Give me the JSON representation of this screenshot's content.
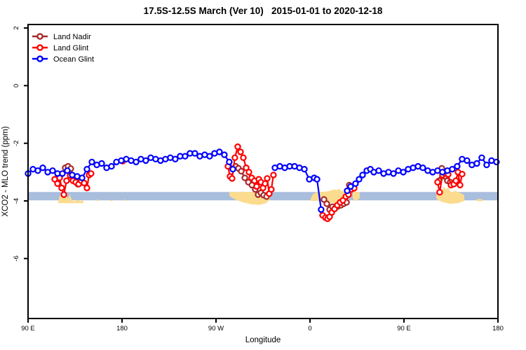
{
  "chart_data": {
    "type": "line",
    "title": "17.5S-12.5S March (Ver 10)   2015-01-01 to 2020-12-18",
    "xlabel": "Longitude",
    "ylabel": "XCO2 - MLO trend (ppm)",
    "x_axis": {
      "note": "longitude wraps eastward from 90E; positions are degrees east of 90E over a 450-degree span",
      "span_deg": 450,
      "ticks": [
        {
          "pos": 0,
          "label": "90 E"
        },
        {
          "pos": 90,
          "label": "180"
        },
        {
          "pos": 180,
          "label": "90 W"
        },
        {
          "pos": 270,
          "label": "0"
        },
        {
          "pos": 360,
          "label": "90 E"
        },
        {
          "pos": 450,
          "label": "180"
        }
      ]
    },
    "y_axis": {
      "ticks": [
        2,
        0,
        -2,
        -4,
        -6
      ],
      "ylim": [
        -8.1,
        2.15
      ],
      "grid": false
    },
    "legend": {
      "position": "top-left",
      "entries": [
        {
          "label": "Land Nadir",
          "color": "#a52a2a"
        },
        {
          "label": "Land Glint",
          "color": "#ff0000"
        },
        {
          "label": "Ocean Glint",
          "color": "#0000ff"
        }
      ]
    },
    "band": {
      "color": "#a9bedd",
      "y_top": -3.69,
      "y_bottom": -3.98
    },
    "land_patches": {
      "color": "#fbdc8e",
      "polygons": [
        [
          [
            28.9,
            -4.05
          ],
          [
            30,
            -3.85
          ],
          [
            32.5,
            -3.72
          ],
          [
            34.5,
            -3.85
          ],
          [
            36,
            -3.74
          ],
          [
            38,
            -3.92
          ],
          [
            40,
            -3.78
          ],
          [
            42,
            -3.98
          ],
          [
            44,
            -4.02
          ],
          [
            47,
            -3.96
          ],
          [
            50,
            -4.0
          ],
          [
            53,
            -3.98
          ],
          [
            53,
            -4.08
          ],
          [
            29,
            -4.08
          ]
        ],
        [
          [
            66,
            -3.96
          ],
          [
            68.5,
            -3.96
          ],
          [
            68.5,
            -4.0
          ],
          [
            66,
            -4.0
          ]
        ],
        [
          [
            79,
            -3.97
          ],
          [
            81,
            -3.97
          ],
          [
            81,
            -4.01
          ],
          [
            79,
            -4.01
          ]
        ],
        [
          [
            92,
            -3.96
          ],
          [
            94,
            -3.96
          ],
          [
            94,
            -4.0
          ],
          [
            92,
            -4.0
          ]
        ],
        [
          [
            192.7,
            -3.69
          ],
          [
            231.7,
            -3.69
          ],
          [
            231.7,
            -3.95
          ],
          [
            228,
            -4.08
          ],
          [
            222,
            -4.14
          ],
          [
            214,
            -4.12
          ],
          [
            206,
            -4.05
          ],
          [
            199,
            -3.96
          ],
          [
            194,
            -3.86
          ],
          [
            192.7,
            -3.8
          ]
        ],
        [
          [
            270.6,
            -3.92
          ],
          [
            273,
            -3.76
          ],
          [
            276,
            -3.7
          ],
          [
            282,
            -3.69
          ],
          [
            288,
            -3.66
          ],
          [
            293,
            -3.6
          ],
          [
            296,
            -3.62
          ],
          [
            298,
            -3.58
          ],
          [
            300,
            -3.65
          ],
          [
            303,
            -3.69
          ],
          [
            305.5,
            -3.74
          ],
          [
            307,
            -3.85
          ],
          [
            307,
            -3.98
          ],
          [
            303,
            -4.05
          ],
          [
            297,
            -4.1
          ],
          [
            290,
            -4.06
          ],
          [
            283,
            -4.02
          ],
          [
            276,
            -4.0
          ],
          [
            270.6,
            -4.0
          ]
        ],
        [
          [
            311,
            -3.69
          ],
          [
            317.6,
            -3.69
          ],
          [
            317.6,
            -3.9
          ],
          [
            315,
            -3.98
          ],
          [
            312.5,
            -4.0
          ],
          [
            311,
            -3.88
          ]
        ],
        [
          [
            390.8,
            -3.82
          ],
          [
            393,
            -3.7
          ],
          [
            396,
            -3.62
          ],
          [
            398.5,
            -3.52
          ],
          [
            400.5,
            -3.6
          ],
          [
            402.5,
            -3.52
          ],
          [
            404,
            -3.66
          ],
          [
            406.5,
            -3.69
          ],
          [
            409,
            -3.65
          ],
          [
            411.5,
            -3.69
          ],
          [
            414,
            -3.72
          ],
          [
            417.7,
            -3.8
          ],
          [
            417.7,
            -4.0
          ],
          [
            412,
            -4.08
          ],
          [
            404,
            -4.1
          ],
          [
            397,
            -4.04
          ],
          [
            392,
            -3.96
          ],
          [
            390.8,
            -3.88
          ]
        ],
        [
          [
            429.8,
            -3.94
          ],
          [
            435.2,
            -3.94
          ],
          [
            435.2,
            -4.01
          ],
          [
            429.8,
            -4.01
          ]
        ]
      ]
    },
    "series": [
      {
        "name": "Land Nadir",
        "color": "#a52a2a",
        "marker": "open-circle",
        "segments": [
          [
            [
              35.6,
              -2.85
            ],
            [
              38.3,
              -2.8
            ],
            [
              41,
              -2.88
            ],
            [
              43.7,
              -3.25
            ],
            [
              45.7,
              -3.32
            ],
            [
              47.7,
              -3.42
            ]
          ],
          [
            [
              198.8,
              -2.8
            ],
            [
              201.5,
              -2.87
            ],
            [
              204.2,
              -2.97
            ],
            [
              207.6,
              -3.2
            ],
            [
              211,
              -3.35
            ],
            [
              214.4,
              -3.45
            ],
            [
              217.6,
              -3.6
            ],
            [
              220.3,
              -3.78
            ],
            [
              223,
              -3.72
            ],
            [
              225.7,
              -3.8
            ],
            [
              228.4,
              -3.85
            ]
          ],
          [
            [
              283.4,
              -3.95
            ],
            [
              286.1,
              -4.1
            ],
            [
              288.8,
              -4.3
            ],
            [
              291.5,
              -4.2
            ],
            [
              294.2,
              -4.25
            ],
            [
              296.9,
              -4.18
            ],
            [
              299.6,
              -4.15
            ],
            [
              302.3,
              -4.1
            ],
            [
              305,
              -4.05
            ],
            [
              307.6,
              -3.45
            ],
            [
              310.3,
              -3.55
            ]
          ],
          [
            [
              393.6,
              -3.3
            ],
            [
              396.3,
              -2.87
            ],
            [
              399,
              -3.15
            ],
            [
              401.6,
              -3.3
            ],
            [
              404.3,
              -3.35
            ],
            [
              407,
              -3.42
            ]
          ]
        ]
      },
      {
        "name": "Land Glint",
        "color": "#ff0000",
        "marker": "open-circle",
        "segments": [
          [
            [
              25.5,
              -3.25
            ],
            [
              28.2,
              -3.4
            ],
            [
              30.2,
              -3.2
            ],
            [
              32.2,
              -3.55
            ],
            [
              34.3,
              -3.78
            ],
            [
              36.9,
              -3.3
            ],
            [
              40.3,
              -3.12
            ],
            [
              43,
              -3.3
            ],
            [
              45.7,
              -3.35
            ],
            [
              48.4,
              -3.42
            ],
            [
              51,
              -3.3
            ],
            [
              53.7,
              -3.38
            ],
            [
              56.4,
              -3.55
            ],
            [
              58.4,
              -3.1
            ],
            [
              60.4,
              -3.05
            ]
          ],
          [
            [
              90.7,
              -2.62
            ]
          ],
          [
            [
              191.4,
              -2.8
            ],
            [
              193.4,
              -3.15
            ],
            [
              195.4,
              -3.22
            ],
            [
              198.1,
              -2.5
            ],
            [
              200.8,
              -2.12
            ],
            [
              203.5,
              -2.3
            ],
            [
              206.2,
              -2.5
            ],
            [
              208.9,
              -2.85
            ],
            [
              211.6,
              -3.0
            ],
            [
              214.2,
              -3.2
            ],
            [
              216.9,
              -3.3
            ],
            [
              218.9,
              -3.5
            ],
            [
              221,
              -3.25
            ],
            [
              223,
              -3.35
            ],
            [
              225,
              -3.55
            ],
            [
              227,
              -3.4
            ],
            [
              229,
              -3.22
            ],
            [
              231,
              -3.75
            ],
            [
              233,
              -3.6
            ],
            [
              235,
              -3.1
            ]
          ],
          [
            [
              282.1,
              -4.5
            ],
            [
              284.8,
              -4.58
            ],
            [
              286.8,
              -4.62
            ],
            [
              288.8,
              -4.55
            ],
            [
              290.8,
              -4.4
            ],
            [
              293.5,
              -4.28
            ],
            [
              296.2,
              -4.15
            ],
            [
              298.9,
              -4.05
            ],
            [
              301.6,
              -3.98
            ],
            [
              304.3,
              -3.85
            ],
            [
              306.9,
              -3.78
            ],
            [
              309.6,
              -3.6
            ],
            [
              312.3,
              -3.56
            ]
          ],
          [
            [
              392.2,
              -3.35
            ],
            [
              394.2,
              -3.7
            ],
            [
              396.9,
              -3.1
            ],
            [
              399.6,
              -3.05
            ],
            [
              402.3,
              -3.08
            ],
            [
              405,
              -3.45
            ],
            [
              407.7,
              -3.42
            ],
            [
              409.7,
              -3.3
            ],
            [
              411.7,
              -3.0
            ],
            [
              413.7,
              -3.45
            ],
            [
              415.7,
              -3.07
            ]
          ]
        ]
      },
      {
        "name": "Ocean Glint",
        "color": "#0000ff",
        "marker": "open-circle",
        "segments": [
          [
            [
              0,
              -3.05
            ],
            [
              4.7,
              -2.9
            ],
            [
              9.4,
              -2.95
            ],
            [
              14.1,
              -2.85
            ],
            [
              18.8,
              -3.0
            ],
            [
              23.5,
              -2.95
            ],
            [
              28.2,
              -3.05
            ],
            [
              32.9,
              -3.05
            ],
            [
              37.6,
              -2.95
            ],
            [
              42.3,
              -3.1
            ],
            [
              47,
              -3.15
            ],
            [
              51.7,
              -3.2
            ],
            [
              56.4,
              -2.9
            ],
            [
              61.1,
              -2.65
            ],
            [
              65.8,
              -2.75
            ],
            [
              70.5,
              -2.7
            ],
            [
              75.2,
              -2.85
            ],
            [
              79.9,
              -2.8
            ],
            [
              84.6,
              -2.65
            ],
            [
              89.3,
              -2.6
            ],
            [
              94,
              -2.55
            ],
            [
              98.7,
              -2.6
            ],
            [
              103.4,
              -2.65
            ],
            [
              108.1,
              -2.55
            ],
            [
              112.8,
              -2.6
            ],
            [
              117.5,
              -2.5
            ],
            [
              122.2,
              -2.55
            ],
            [
              126.9,
              -2.6
            ],
            [
              131.6,
              -2.55
            ],
            [
              136.3,
              -2.5
            ],
            [
              141,
              -2.55
            ],
            [
              145.7,
              -2.45
            ],
            [
              150.4,
              -2.45
            ],
            [
              155.1,
              -2.35
            ],
            [
              159.8,
              -2.35
            ],
            [
              164.5,
              -2.45
            ],
            [
              169.2,
              -2.4
            ],
            [
              173.9,
              -2.45
            ],
            [
              178.6,
              -2.35
            ],
            [
              183.3,
              -2.3
            ],
            [
              188,
              -2.4
            ],
            [
              192.7,
              -2.65
            ],
            [
              196.1,
              -2.9
            ]
          ],
          [
            [
              236.4,
              -2.85
            ],
            [
              241.1,
              -2.8
            ],
            [
              245.8,
              -2.85
            ],
            [
              250.5,
              -2.8
            ],
            [
              255.2,
              -2.8
            ],
            [
              259.9,
              -2.85
            ],
            [
              264.6,
              -2.9
            ],
            [
              269.3,
              -3.25
            ],
            [
              274,
              -3.2
            ],
            [
              276.7,
              -3.25
            ],
            [
              280.7,
              -4.3
            ]
          ],
          [
            [
              305.6,
              -3.65
            ],
            [
              308.9,
              -3.5
            ],
            [
              313.6,
              -3.4
            ],
            [
              317,
              -3.25
            ],
            [
              320.4,
              -3.1
            ],
            [
              324.4,
              -2.95
            ],
            [
              327.8,
              -2.9
            ],
            [
              331.1,
              -3.0
            ],
            [
              335.8,
              -2.95
            ],
            [
              340.5,
              -3.05
            ],
            [
              345.2,
              -3.0
            ],
            [
              349.9,
              -3.05
            ],
            [
              354.6,
              -2.95
            ],
            [
              359.3,
              -3.0
            ],
            [
              364,
              -2.9
            ],
            [
              368.7,
              -2.85
            ],
            [
              373.4,
              -2.8
            ],
            [
              378.1,
              -2.85
            ],
            [
              382.8,
              -2.95
            ],
            [
              387.5,
              -3.0
            ],
            [
              392.2,
              -2.95
            ],
            [
              396.9,
              -3.0
            ],
            [
              401.6,
              -2.95
            ],
            [
              406.3,
              -2.9
            ],
            [
              411,
              -2.8
            ],
            [
              415.7,
              -2.55
            ],
            [
              420.4,
              -2.6
            ],
            [
              425.1,
              -2.75
            ],
            [
              429.8,
              -2.7
            ],
            [
              434.5,
              -2.5
            ],
            [
              439.2,
              -2.75
            ],
            [
              443.9,
              -2.6
            ],
            [
              448.6,
              -2.65
            ]
          ]
        ]
      }
    ]
  }
}
